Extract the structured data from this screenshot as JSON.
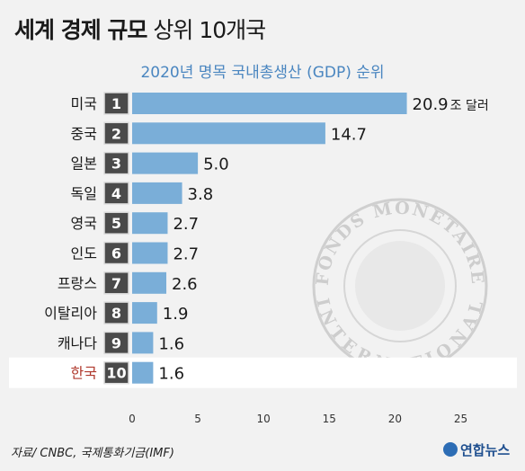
{
  "title": {
    "bold": "세계 경제 규모",
    "light": "상위 10개국"
  },
  "chart_data": {
    "type": "bar",
    "title": "2020년 명목 국내총생산 (GDP) 순위",
    "categories": [
      "미국",
      "중국",
      "일본",
      "독일",
      "영국",
      "인도",
      "프랑스",
      "이탈리아",
      "캐나다",
      "한국"
    ],
    "ranks": [
      "1",
      "2",
      "3",
      "4",
      "5",
      "6",
      "7",
      "8",
      "9",
      "10"
    ],
    "values": [
      20.9,
      14.7,
      5.0,
      3.8,
      2.7,
      2.7,
      2.6,
      1.9,
      1.6,
      1.6
    ],
    "value_labels": [
      "20.9",
      "14.7",
      "5.0",
      "3.8",
      "2.7",
      "2.7",
      "2.6",
      "1.9",
      "1.6",
      "1.6"
    ],
    "value_unit": "조 달러",
    "highlight_category": "한국",
    "xlim": [
      0,
      25
    ],
    "xticks": [
      "0",
      "5",
      "10",
      "15",
      "20",
      "25"
    ],
    "grid": false,
    "bar_color": "#7aaed8",
    "highlight_label_color": "#b03a2e"
  },
  "watermark": {
    "top_text": "FONDS MONETAIRE",
    "bottom_text": "INTERNATIONAL"
  },
  "source": "자료/ CNBC, 국제통화기금(IMF)",
  "brand": "연합뉴스"
}
